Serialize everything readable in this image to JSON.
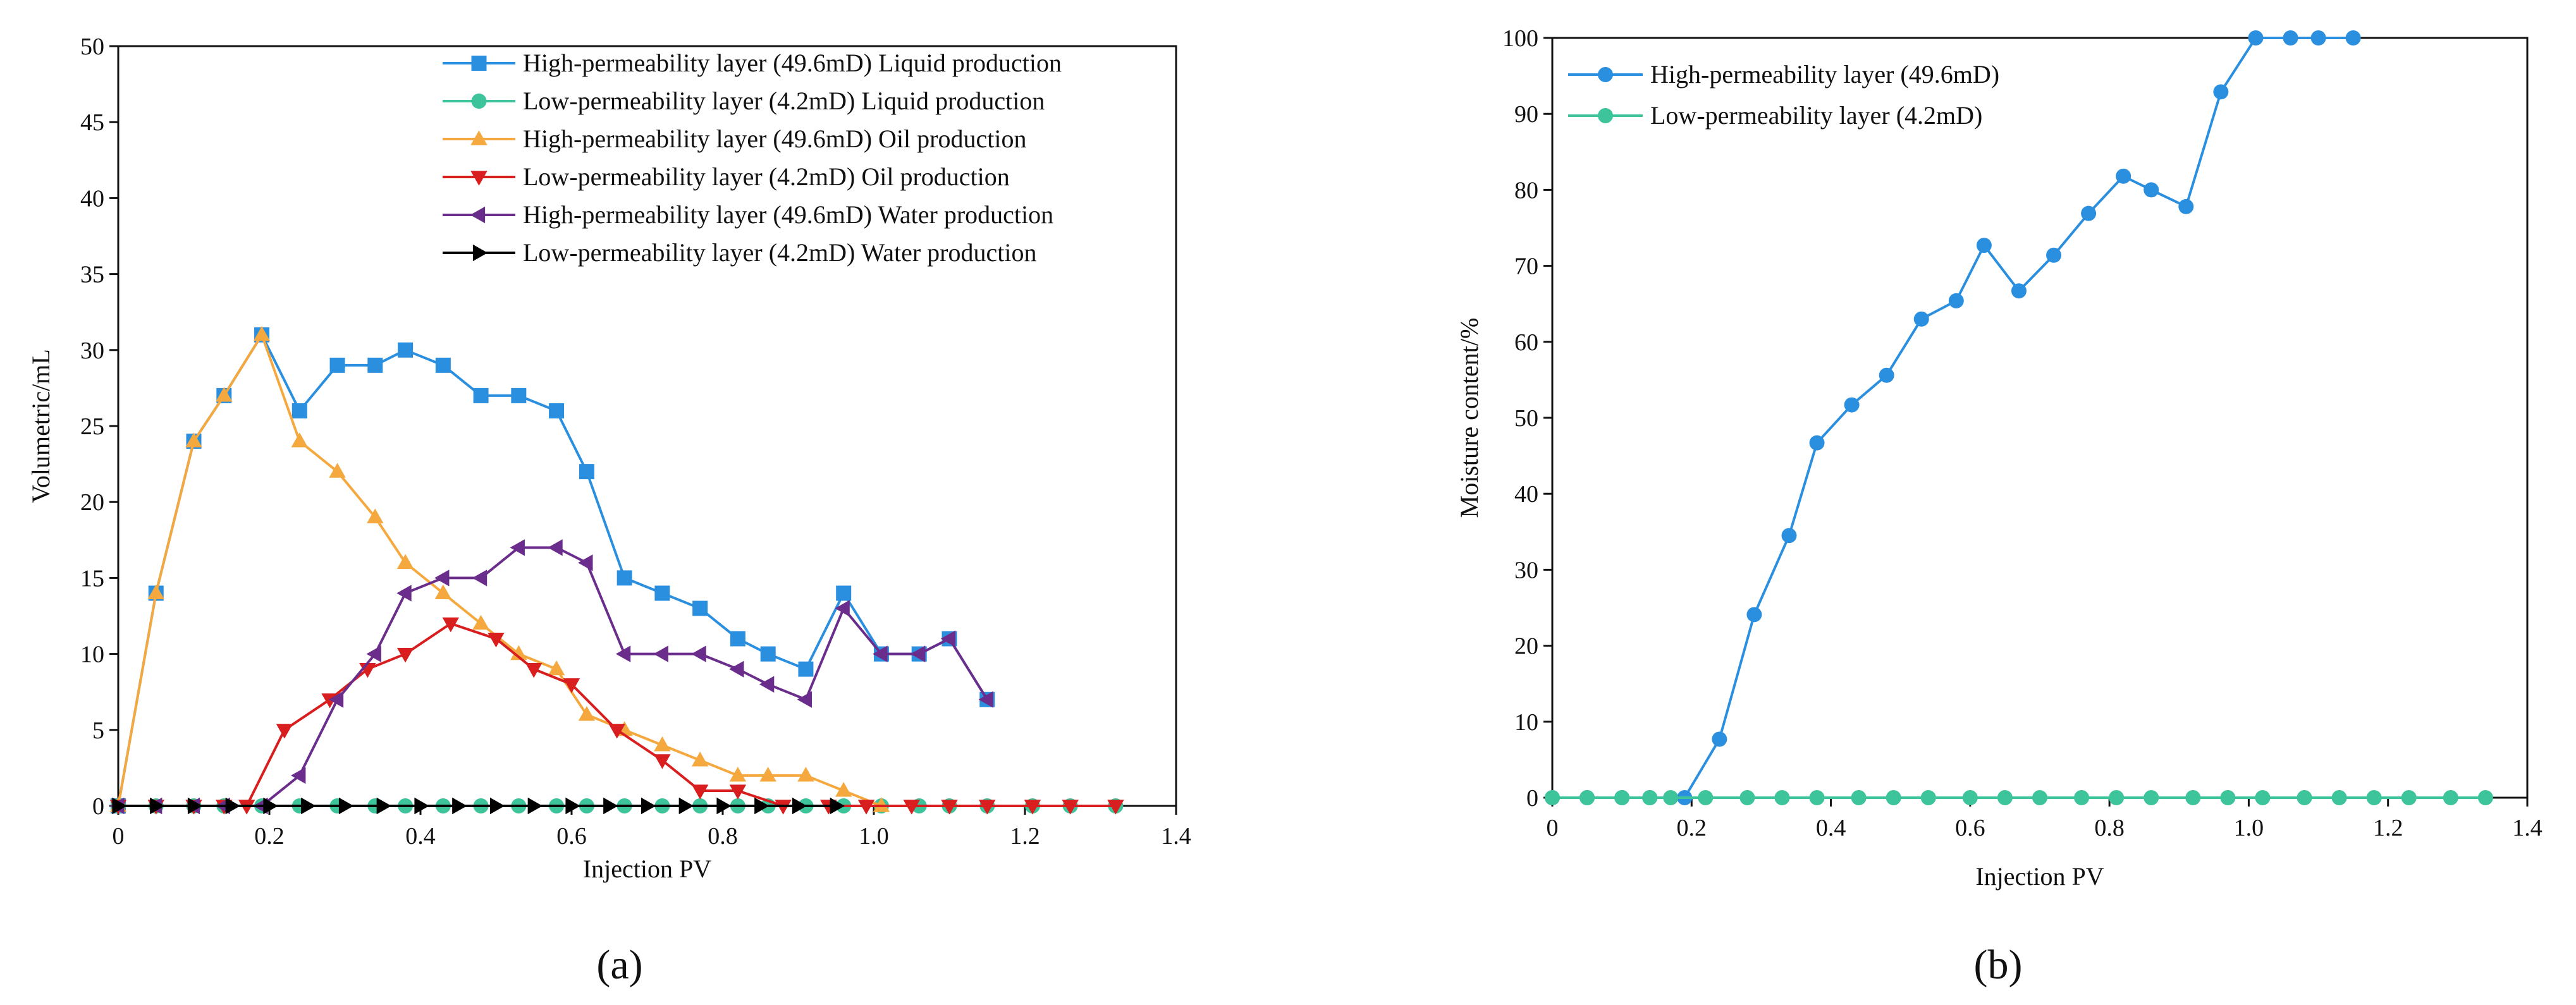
{
  "chart_data": [
    {
      "id": "a",
      "type": "line",
      "panel_label": "(a)",
      "xlabel": "Injection PV",
      "ylabel": "Volumetric/mL",
      "xlim": [
        0,
        1.4
      ],
      "ylim": [
        0,
        50
      ],
      "xticks": [
        0,
        0.2,
        0.4,
        0.6,
        0.8,
        1.0,
        1.2,
        1.4
      ],
      "xtick_labels": [
        "0",
        "0.2",
        "0.4",
        "0.6",
        "0.8",
        "1.0",
        "1.2",
        "1.4"
      ],
      "yticks": [
        0,
        5,
        10,
        15,
        20,
        25,
        30,
        35,
        40,
        45,
        50
      ],
      "ytick_labels": [
        "0",
        "5",
        "10",
        "15",
        "20",
        "25",
        "30",
        "35",
        "40",
        "45",
        "50"
      ],
      "legend_position": "top-right",
      "series": [
        {
          "name": "High-permeability layer (49.6mD) Liquid production",
          "color": "#2b8fe0",
          "marker": "square",
          "x": [
            0,
            0.05,
            0.1,
            0.14,
            0.19,
            0.24,
            0.29,
            0.34,
            0.38,
            0.43,
            0.48,
            0.53,
            0.58,
            0.62,
            0.67,
            0.72,
            0.77,
            0.82,
            0.86,
            0.91,
            0.96,
            1.01,
            1.06,
            1.1,
            1.15
          ],
          "y": [
            0,
            14,
            24,
            27,
            31,
            26,
            29,
            29,
            30,
            29,
            27,
            27,
            26,
            22,
            15,
            14,
            13,
            11,
            10,
            9,
            14,
            10,
            10,
            11,
            7
          ]
        },
        {
          "name": "Low-permeability layer (4.2mD) Liquid production",
          "color": "#3ec49a",
          "marker": "circle",
          "x": [
            0,
            0.05,
            0.1,
            0.14,
            0.19,
            0.24,
            0.29,
            0.34,
            0.38,
            0.43,
            0.48,
            0.53,
            0.58,
            0.62,
            0.67,
            0.72,
            0.77,
            0.82,
            0.86,
            0.91,
            0.96,
            1.01,
            1.06,
            1.1,
            1.15,
            1.21,
            1.26,
            1.32
          ],
          "y": [
            0,
            0,
            0,
            0,
            0,
            0,
            0,
            0,
            0,
            0,
            0,
            0,
            0,
            0,
            0,
            0,
            0,
            0,
            0,
            0,
            0,
            0,
            0,
            0,
            0,
            0,
            0,
            0
          ]
        },
        {
          "name": "High-permeability layer (49.6mD) Oil production",
          "color": "#f5a83d",
          "marker": "triangle-up",
          "x": [
            0,
            0.05,
            0.1,
            0.14,
            0.19,
            0.24,
            0.29,
            0.34,
            0.38,
            0.43,
            0.48,
            0.53,
            0.58,
            0.62,
            0.67,
            0.72,
            0.77,
            0.82,
            0.86,
            0.91,
            0.96,
            1.01
          ],
          "y": [
            0,
            14,
            24,
            27,
            31,
            24,
            22,
            19,
            16,
            14,
            12,
            10,
            9,
            6,
            5,
            4,
            3,
            2,
            2,
            2,
            1,
            0
          ]
        },
        {
          "name": "Low-permeability layer (4.2mD) Oil production",
          "color": "#d81e1e",
          "marker": "triangle-down",
          "x": [
            0,
            0.05,
            0.1,
            0.14,
            0.17,
            0.22,
            0.28,
            0.33,
            0.38,
            0.44,
            0.5,
            0.55,
            0.6,
            0.66,
            0.72,
            0.77,
            0.82,
            0.88,
            0.94,
            0.99,
            1.05,
            1.1,
            1.15,
            1.21,
            1.26,
            1.32
          ],
          "y": [
            0,
            0,
            0,
            0,
            0,
            5,
            7,
            9,
            10,
            12,
            11,
            9,
            8,
            5,
            3,
            1,
            1,
            0,
            0,
            0,
            0,
            0,
            0,
            0,
            0,
            0
          ]
        },
        {
          "name": "High-permeability layer (49.6mD) Water production",
          "color": "#6b2d8c",
          "marker": "triangle-left",
          "x": [
            0,
            0.05,
            0.1,
            0.14,
            0.19,
            0.24,
            0.29,
            0.34,
            0.38,
            0.43,
            0.48,
            0.53,
            0.58,
            0.62,
            0.67,
            0.72,
            0.77,
            0.82,
            0.86,
            0.91,
            0.96,
            1.01,
            1.06,
            1.1,
            1.15
          ],
          "y": [
            0,
            0,
            0,
            0,
            0,
            2,
            7,
            10,
            14,
            15,
            15,
            17,
            17,
            16,
            10,
            10,
            10,
            9,
            8,
            7,
            13,
            10,
            10,
            11,
            7
          ]
        },
        {
          "name": "Low-permeability layer (4.2mD) Water production",
          "color": "#000000",
          "marker": "triangle-right",
          "x": [
            0,
            0.05,
            0.1,
            0.15,
            0.2,
            0.25,
            0.3,
            0.35,
            0.4,
            0.45,
            0.5,
            0.55,
            0.6,
            0.65,
            0.7,
            0.75,
            0.8,
            0.85,
            0.9,
            0.95
          ],
          "y": [
            0,
            0,
            0,
            0,
            0,
            0,
            0,
            0,
            0,
            0,
            0,
            0,
            0,
            0,
            0,
            0,
            0,
            0,
            0,
            0
          ]
        }
      ]
    },
    {
      "id": "b",
      "type": "line",
      "panel_label": "(b)",
      "xlabel": "Injection PV",
      "ylabel": "Moisture content/%",
      "xlim": [
        0,
        1.4
      ],
      "ylim": [
        0,
        100
      ],
      "xticks": [
        0,
        0.2,
        0.4,
        0.6,
        0.8,
        1.0,
        1.2,
        1.4
      ],
      "xtick_labels": [
        "0",
        "0.2",
        "0.4",
        "0.6",
        "0.8",
        "1.0",
        "1.2",
        "1.4"
      ],
      "yticks": [
        0,
        10,
        20,
        30,
        40,
        50,
        60,
        70,
        80,
        90,
        100
      ],
      "ytick_labels": [
        "0",
        "10",
        "20",
        "30",
        "40",
        "50",
        "60",
        "70",
        "80",
        "90",
        "100"
      ],
      "legend_position": "top-left",
      "series": [
        {
          "name": "High-permeability layer (49.6mD)",
          "color": "#2b8fe0",
          "marker": "circle",
          "x": [
            0,
            0.05,
            0.1,
            0.14,
            0.19,
            0.24,
            0.29,
            0.34,
            0.38,
            0.43,
            0.48,
            0.53,
            0.58,
            0.62,
            0.67,
            0.72,
            0.77,
            0.82,
            0.86,
            0.91,
            0.96,
            1.01,
            1.06,
            1.1,
            1.15
          ],
          "y": [
            0,
            0,
            0,
            0,
            0,
            7.7,
            24.1,
            34.5,
            46.7,
            51.7,
            55.6,
            63,
            65.4,
            72.7,
            66.7,
            71.4,
            76.9,
            81.8,
            80,
            77.8,
            92.9,
            100,
            100,
            100,
            100
          ]
        },
        {
          "name": "Low-permeability layer (4.2mD)",
          "color": "#3ec49a",
          "marker": "circle",
          "x": [
            0,
            0.05,
            0.1,
            0.14,
            0.17,
            0.22,
            0.28,
            0.33,
            0.38,
            0.44,
            0.49,
            0.54,
            0.6,
            0.65,
            0.7,
            0.76,
            0.81,
            0.86,
            0.92,
            0.97,
            1.02,
            1.08,
            1.13,
            1.18,
            1.23,
            1.29,
            1.34
          ],
          "y": [
            0,
            0,
            0,
            0,
            0,
            0,
            0,
            0,
            0,
            0,
            0,
            0,
            0,
            0,
            0,
            0,
            0,
            0,
            0,
            0,
            0,
            0,
            0,
            0,
            0,
            0,
            0
          ]
        }
      ]
    }
  ]
}
